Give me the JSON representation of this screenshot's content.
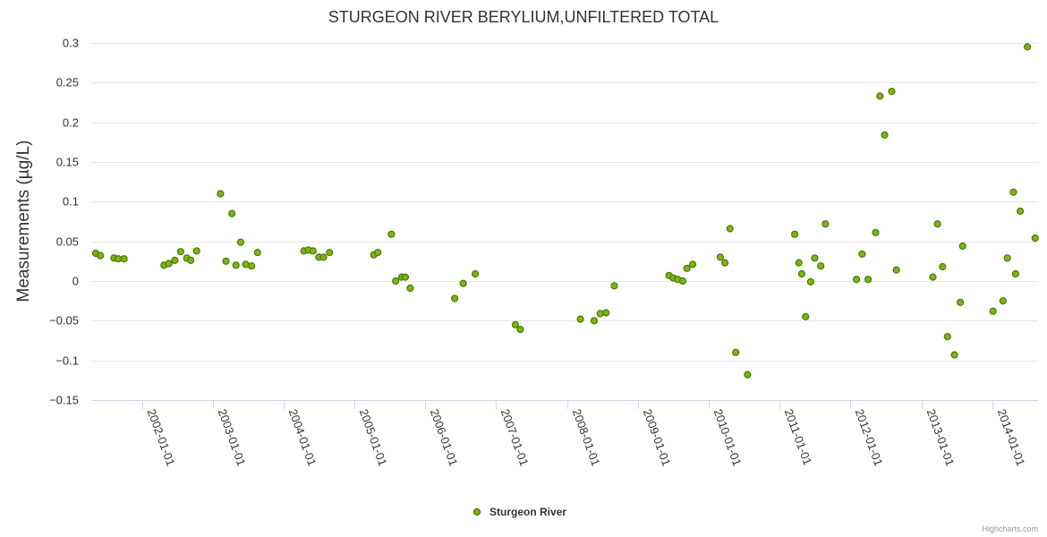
{
  "chart_data": {
    "type": "scatter",
    "title": "STURGEON RIVER BERYLIUM,UNFILTERED TOTAL",
    "ylabel": "Measurements (µg/L)",
    "xlabel": "",
    "ylim": [
      -0.15,
      0.3
    ],
    "yticks": [
      0.3,
      0.25,
      0.2,
      0.15,
      0.1,
      0.05,
      0,
      -0.05,
      -0.1,
      -0.15
    ],
    "ytick_labels": [
      "0.3",
      "0.25",
      "0.2",
      "0.15",
      "0.1",
      "0.05",
      "0",
      "−0.05",
      "−0.1",
      "−0.15"
    ],
    "xlim": [
      "2001-04-15",
      "2014-08-25"
    ],
    "xticks": [
      "2002-01-01",
      "2003-01-01",
      "2004-01-01",
      "2005-01-01",
      "2006-01-01",
      "2007-01-01",
      "2008-01-01",
      "2009-01-01",
      "2010-01-01",
      "2011-01-01",
      "2012-01-01",
      "2013-01-01",
      "2014-01-01"
    ],
    "series": [
      {
        "name": "Sturgeon River",
        "color": "#7cb518",
        "points": [
          {
            "x": "2001-05-08",
            "y": 0.035
          },
          {
            "x": "2001-06-01",
            "y": 0.032
          },
          {
            "x": "2001-08-10",
            "y": 0.029
          },
          {
            "x": "2001-09-01",
            "y": 0.028
          },
          {
            "x": "2001-10-01",
            "y": 0.028
          },
          {
            "x": "2002-04-25",
            "y": 0.02
          },
          {
            "x": "2002-05-20",
            "y": 0.022
          },
          {
            "x": "2002-06-20",
            "y": 0.026
          },
          {
            "x": "2002-07-20",
            "y": 0.037
          },
          {
            "x": "2002-08-20",
            "y": 0.029
          },
          {
            "x": "2002-09-10",
            "y": 0.026
          },
          {
            "x": "2002-10-10",
            "y": 0.038
          },
          {
            "x": "2003-02-10",
            "y": 0.11
          },
          {
            "x": "2003-03-10",
            "y": 0.025
          },
          {
            "x": "2003-04-10",
            "y": 0.085
          },
          {
            "x": "2003-05-01",
            "y": 0.02
          },
          {
            "x": "2003-05-25",
            "y": 0.049
          },
          {
            "x": "2003-06-20",
            "y": 0.021
          },
          {
            "x": "2003-07-20",
            "y": 0.019
          },
          {
            "x": "2003-08-20",
            "y": 0.036
          },
          {
            "x": "2004-04-15",
            "y": 0.038
          },
          {
            "x": "2004-05-08",
            "y": 0.039
          },
          {
            "x": "2004-06-01",
            "y": 0.038
          },
          {
            "x": "2004-07-01",
            "y": 0.03
          },
          {
            "x": "2004-07-25",
            "y": 0.03
          },
          {
            "x": "2004-08-25",
            "y": 0.036
          },
          {
            "x": "2005-04-10",
            "y": 0.033
          },
          {
            "x": "2005-05-01",
            "y": 0.036
          },
          {
            "x": "2005-07-10",
            "y": 0.059
          },
          {
            "x": "2005-08-01",
            "y": 0
          },
          {
            "x": "2005-09-01",
            "y": 0.005
          },
          {
            "x": "2005-09-20",
            "y": 0.005
          },
          {
            "x": "2005-10-15",
            "y": -0.009
          },
          {
            "x": "2006-06-01",
            "y": -0.022
          },
          {
            "x": "2006-07-15",
            "y": -0.003
          },
          {
            "x": "2006-09-15",
            "y": 0.009
          },
          {
            "x": "2007-04-10",
            "y": -0.055
          },
          {
            "x": "2007-05-05",
            "y": -0.061
          },
          {
            "x": "2008-03-10",
            "y": -0.048
          },
          {
            "x": "2008-05-20",
            "y": -0.05
          },
          {
            "x": "2008-06-20",
            "y": -0.041
          },
          {
            "x": "2008-07-20",
            "y": -0.04
          },
          {
            "x": "2008-09-01",
            "y": -0.006
          },
          {
            "x": "2009-06-10",
            "y": 0.007
          },
          {
            "x": "2009-07-01",
            "y": 0.004
          },
          {
            "x": "2009-07-25",
            "y": 0.002
          },
          {
            "x": "2009-08-20",
            "y": 0
          },
          {
            "x": "2009-09-10",
            "y": 0.016
          },
          {
            "x": "2009-10-10",
            "y": 0.021
          },
          {
            "x": "2010-03-01",
            "y": 0.03
          },
          {
            "x": "2010-03-25",
            "y": 0.023
          },
          {
            "x": "2010-04-20",
            "y": 0.066
          },
          {
            "x": "2010-05-20",
            "y": -0.09
          },
          {
            "x": "2010-07-20",
            "y": -0.118
          },
          {
            "x": "2011-03-20",
            "y": 0.059
          },
          {
            "x": "2011-04-10",
            "y": 0.023
          },
          {
            "x": "2011-04-25",
            "y": 0.009
          },
          {
            "x": "2011-05-15",
            "y": -0.045
          },
          {
            "x": "2011-06-10",
            "y": -0.001
          },
          {
            "x": "2011-07-01",
            "y": 0.029
          },
          {
            "x": "2011-08-01",
            "y": 0.019
          },
          {
            "x": "2011-08-25",
            "y": 0.072
          },
          {
            "x": "2012-02-01",
            "y": 0.002
          },
          {
            "x": "2012-03-01",
            "y": 0.034
          },
          {
            "x": "2012-04-01",
            "y": 0.002
          },
          {
            "x": "2012-05-10",
            "y": 0.061
          },
          {
            "x": "2012-06-01",
            "y": 0.233
          },
          {
            "x": "2012-06-25",
            "y": 0.184
          },
          {
            "x": "2012-08-01",
            "y": 0.239
          },
          {
            "x": "2012-08-25",
            "y": 0.014
          },
          {
            "x": "2013-03-01",
            "y": 0.005
          },
          {
            "x": "2013-03-25",
            "y": 0.072
          },
          {
            "x": "2013-04-20",
            "y": 0.018
          },
          {
            "x": "2013-05-15",
            "y": -0.07
          },
          {
            "x": "2013-06-20",
            "y": -0.093
          },
          {
            "x": "2013-07-20",
            "y": -0.027
          },
          {
            "x": "2013-08-01",
            "y": 0.044
          },
          {
            "x": "2014-01-05",
            "y": -0.038
          },
          {
            "x": "2014-02-25",
            "y": -0.025
          },
          {
            "x": "2014-03-20",
            "y": 0.029
          },
          {
            "x": "2014-04-20",
            "y": 0.112
          },
          {
            "x": "2014-05-01",
            "y": 0.009
          },
          {
            "x": "2014-05-25",
            "y": 0.088
          },
          {
            "x": "2014-07-01",
            "y": 0.295
          },
          {
            "x": "2014-08-10",
            "y": 0.054
          }
        ]
      }
    ],
    "legend": {
      "position": "bottom-center"
    },
    "credits": "Highcharts.com"
  }
}
